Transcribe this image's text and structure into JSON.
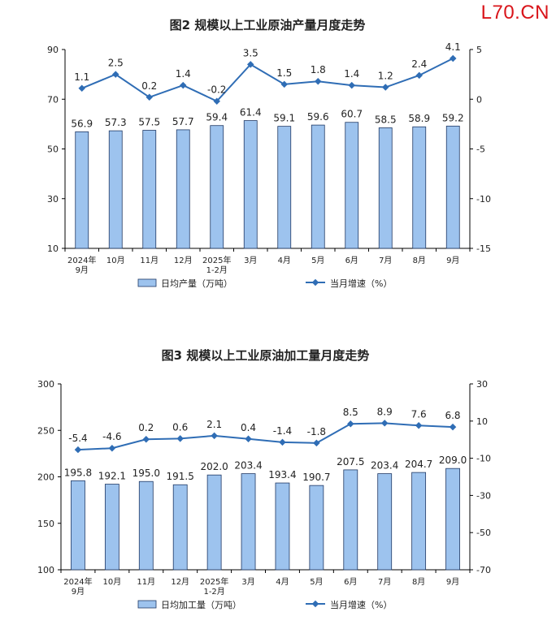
{
  "site_logo": "L70.CN",
  "colors": {
    "bar_fill": "#9dc3ee",
    "bar_stroke": "#1f3864",
    "line": "#2f6db5",
    "axis": "#000000",
    "text": "#222222"
  },
  "chart_data": [
    {
      "type": "bar+line",
      "title": "图2 规模以上工业原油产量月度走势",
      "categories": [
        "2024年\n9月",
        "10月",
        "11月",
        "12月",
        "2025年\n1-2月",
        "3月",
        "4月",
        "5月",
        "6月",
        "7月",
        "8月",
        "9月"
      ],
      "series": [
        {
          "name": "日均产量（万吨）",
          "kind": "bar",
          "axis": "left",
          "values": [
            56.9,
            57.3,
            57.5,
            57.7,
            59.4,
            61.4,
            59.1,
            59.6,
            60.7,
            58.5,
            58.9,
            59.2
          ],
          "labels": [
            "56.9",
            "57.3",
            "57.5",
            "57.7",
            "59.4",
            "61.4",
            "59.1",
            "59.6",
            "60.7",
            "58.5",
            "58.9",
            "59.2"
          ]
        },
        {
          "name": "当月增速（%）",
          "kind": "line",
          "axis": "right",
          "values": [
            1.1,
            2.5,
            0.2,
            1.4,
            -0.2,
            3.5,
            1.5,
            1.8,
            1.4,
            1.2,
            2.4,
            4.1
          ],
          "labels": [
            "1.1",
            "2.5",
            "0.2",
            "1.4",
            "-0.2",
            "3.5",
            "1.5",
            "1.8",
            "1.4",
            "1.2",
            "2.4",
            "4.1"
          ]
        }
      ],
      "y_left": {
        "ylim": [
          10,
          90
        ],
        "ticks": [
          "10",
          "30",
          "50",
          "70",
          "90"
        ]
      },
      "y_right": {
        "ylim": [
          -15,
          5
        ],
        "ticks": [
          "-15",
          "-10",
          "-5",
          "0",
          "5"
        ]
      },
      "legend_position": "bottom",
      "grid": false
    },
    {
      "type": "bar+line",
      "title": "图3 规模以上工业原油加工量月度走势",
      "categories": [
        "2024年\n9月",
        "10月",
        "11月",
        "12月",
        "2025年\n1-2月",
        "3月",
        "4月",
        "5月",
        "6月",
        "7月",
        "8月",
        "9月"
      ],
      "series": [
        {
          "name": "日均加工量（万吨）",
          "kind": "bar",
          "axis": "left",
          "values": [
            195.8,
            192.1,
            195.0,
            191.5,
            202.0,
            203.4,
            193.4,
            190.7,
            207.5,
            203.4,
            204.7,
            209.0
          ],
          "labels": [
            "195.8",
            "192.1",
            "195.0",
            "191.5",
            "202.0",
            "203.4",
            "193.4",
            "190.7",
            "207.5",
            "203.4",
            "204.7",
            "209.0"
          ]
        },
        {
          "name": "当月增速（%）",
          "kind": "line",
          "axis": "right",
          "values": [
            -5.4,
            -4.6,
            0.2,
            0.6,
            2.1,
            0.4,
            -1.4,
            -1.8,
            8.5,
            8.9,
            7.6,
            6.8
          ],
          "labels": [
            "-5.4",
            "-4.6",
            "0.2",
            "0.6",
            "2.1",
            "0.4",
            "-1.4",
            "-1.8",
            "8.5",
            "8.9",
            "7.6",
            "6.8"
          ]
        }
      ],
      "y_left": {
        "ylim": [
          100,
          300
        ],
        "ticks": [
          "100",
          "150",
          "200",
          "250",
          "300"
        ]
      },
      "y_right": {
        "ylim": [
          -70,
          30
        ],
        "ticks": [
          "-70",
          "-50",
          "-30",
          "-10",
          "10",
          "30"
        ]
      },
      "legend_position": "bottom",
      "grid": false
    }
  ]
}
